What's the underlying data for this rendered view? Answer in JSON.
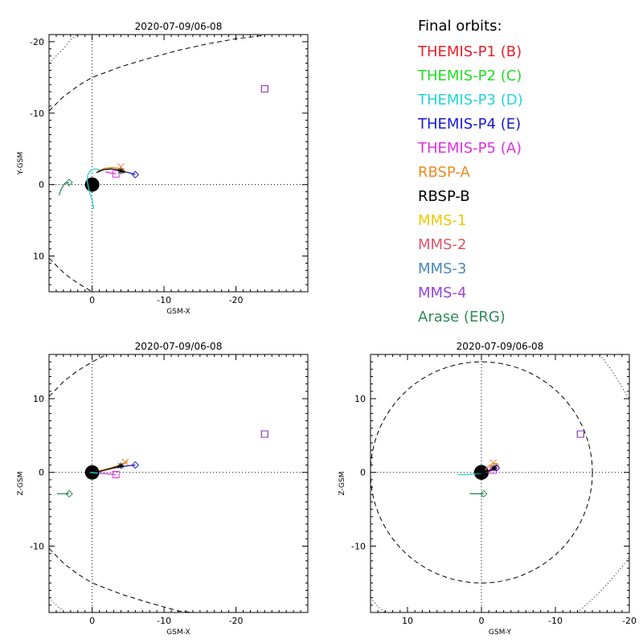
{
  "legend": {
    "title": "Final orbits:",
    "entries": [
      {
        "label": "THEMIS-P1 (B)",
        "color": "#e8202a"
      },
      {
        "label": "THEMIS-P2 (C)",
        "color": "#22dd22"
      },
      {
        "label": "THEMIS-P3 (D)",
        "color": "#22d4d8"
      },
      {
        "label": "THEMIS-P4 (E)",
        "color": "#1a1ad0"
      },
      {
        "label": "THEMIS-P5 (A)",
        "color": "#e030e0"
      },
      {
        "label": "RBSP-A",
        "color": "#ee8a22"
      },
      {
        "label": "RBSP-B",
        "color": "#000000"
      },
      {
        "label": "MMS-1",
        "color": "#f0c800"
      },
      {
        "label": "MMS-2",
        "color": "#dd5566"
      },
      {
        "label": "MMS-3",
        "color": "#4a88b8"
      },
      {
        "label": "MMS-4",
        "color": "#9944d8"
      },
      {
        "label": "Arase (ERG)",
        "color": "#2e8a5a"
      }
    ]
  },
  "chart_data": [
    {
      "type": "line",
      "title": "2020-07-09/06-08",
      "xlabel": "GSM-X",
      "ylabel": "Y-GSM",
      "xlim": [
        6,
        -30
      ],
      "ylim": [
        15,
        -21
      ],
      "xticks": [
        0,
        -10,
        -20
      ],
      "yticks": [
        -20,
        -10,
        0,
        10
      ],
      "earth": {
        "x": 0,
        "y": 0
      },
      "guide_lines": {
        "vertical": 0,
        "horizontal": 0
      },
      "boundaries": [
        {
          "style": "dotted",
          "points": [
            [
              6,
              -17
            ],
            [
              5,
              -18
            ],
            [
              4,
              -19
            ],
            [
              3,
              -20.3
            ],
            [
              2,
              -21
            ]
          ]
        },
        {
          "style": "dashed",
          "points": [
            [
              6,
              -10.3
            ],
            [
              4,
              -12.3
            ],
            [
              2,
              -13.8
            ],
            [
              0,
              -15
            ],
            [
              -4,
              -16.5
            ],
            [
              -8,
              -17.7
            ],
            [
              -12,
              -18.8
            ],
            [
              -16,
              -19.7
            ],
            [
              -20,
              -20.4
            ],
            [
              -24,
              -20.9
            ]
          ]
        },
        {
          "style": "dashed",
          "points": [
            [
              6,
              10.3
            ],
            [
              5,
              11.3
            ],
            [
              4,
              12.3
            ],
            [
              3,
              13.1
            ],
            [
              2,
              13.8
            ],
            [
              1,
              14.4
            ],
            [
              0,
              15
            ]
          ]
        }
      ],
      "series": [
        {
          "name": "THEMIS-P4 (E)",
          "color": "#1a1ad0",
          "points": [
            [
              -3.8,
              -2.0
            ],
            [
              -4.6,
              -1.8
            ],
            [
              -5.3,
              -1.6
            ],
            [
              -6.0,
              -1.4
            ]
          ],
          "marker": {
            "x": -6.0,
            "y": -1.4,
            "shape": "diamond"
          }
        },
        {
          "name": "THEMIS-P3 (D)",
          "color": "#22d4d8",
          "points": [
            [
              -1.2,
              -2.0
            ],
            [
              -0.5,
              -2.2
            ],
            [
              0.2,
              -2.0
            ],
            [
              0.6,
              -1.4
            ],
            [
              0.7,
              -0.6
            ],
            [
              0.5,
              0.5
            ],
            [
              0.2,
              1.6
            ],
            [
              0.0,
              2.2
            ],
            [
              -0.1,
              2.8
            ],
            [
              -0.2,
              3.4
            ]
          ],
          "marker": null
        },
        {
          "name": "THEMIS-P5 (A)",
          "color": "#e030e0",
          "points": [
            [
              -1.8,
              -1.8
            ],
            [
              -2.6,
              -1.6
            ],
            [
              -3.3,
              -1.5
            ]
          ],
          "marker": {
            "x": -3.3,
            "y": -1.5,
            "shape": "square"
          }
        },
        {
          "name": "RBSP-A",
          "color": "#ee8a22",
          "points": [
            [
              -0.8,
              -1.9
            ],
            [
              -1.8,
              -2.3
            ],
            [
              -2.8,
              -2.4
            ],
            [
              -3.6,
              -2.3
            ],
            [
              -4.2,
              -2.1
            ],
            [
              -4.8,
              -1.8
            ]
          ],
          "marker": {
            "x": -4.0,
            "y": -2.5,
            "shape": "cross"
          }
        },
        {
          "name": "RBSP-B",
          "color": "#000000",
          "points": [
            [
              -0.6,
              -1.7
            ],
            [
              -1.6,
              -2.1
            ],
            [
              -2.6,
              -2.2
            ],
            [
              -3.4,
              -2.1
            ],
            [
              -4.0,
              -1.9
            ],
            [
              -4.6,
              -1.7
            ]
          ],
          "marker": {
            "x": -4.0,
            "y": -1.9,
            "shape": "asterisk"
          }
        },
        {
          "name": "MMS-1",
          "color": "#f0c800",
          "points": [],
          "marker": {
            "x": -24.0,
            "y": -13.4,
            "shape": "square"
          }
        },
        {
          "name": "MMS-2",
          "color": "#dd5566",
          "points": [],
          "marker": {
            "x": -24.0,
            "y": -13.4,
            "shape": "square"
          }
        },
        {
          "name": "MMS-3",
          "color": "#4a88b8",
          "points": [],
          "marker": {
            "x": -24.0,
            "y": -13.4,
            "shape": "square"
          }
        },
        {
          "name": "MMS-4",
          "color": "#9944d8",
          "points": [],
          "marker": {
            "x": -24.0,
            "y": -13.4,
            "shape": "square"
          }
        },
        {
          "name": "Arase (ERG)",
          "color": "#2e8a5a",
          "points": [
            [
              4.6,
              1.5
            ],
            [
              4.3,
              0.6
            ],
            [
              3.8,
              -0.2
            ],
            [
              3.2,
              -0.3
            ]
          ],
          "marker": {
            "x": 3.2,
            "y": -0.3,
            "shape": "diamond"
          }
        }
      ]
    },
    {
      "type": "line",
      "title": "2020-07-09/06-08",
      "xlabel": "GSM-X",
      "ylabel": "Z-GSM",
      "xlim": [
        6,
        -30
      ],
      "ylim": [
        -19,
        16
      ],
      "xticks": [
        0,
        -10,
        -20
      ],
      "yticks": [
        -10,
        0,
        10
      ],
      "earth": {
        "x": 0,
        "y": 0
      },
      "guide_lines": {
        "vertical": 0,
        "horizontal": 0
      },
      "boundaries": [
        {
          "style": "dashed",
          "points": [
            [
              6,
              10.3
            ],
            [
              4,
              12.3
            ],
            [
              2,
              13.8
            ],
            [
              0,
              15
            ],
            [
              -2,
              16
            ]
          ]
        },
        {
          "style": "dashed",
          "points": [
            [
              6,
              -10.3
            ],
            [
              4,
              -12.3
            ],
            [
              2,
              -13.8
            ],
            [
              0,
              -15
            ],
            [
              -4,
              -16.5
            ],
            [
              -8,
              -17.7
            ],
            [
              -12,
              -18.8
            ],
            [
              -14,
              -19
            ]
          ]
        },
        {
          "style": "dotted",
          "points": [
            [
              6,
              -17
            ],
            [
              5,
              -18
            ],
            [
              4,
              -18.8
            ]
          ]
        }
      ],
      "series": [
        {
          "name": "THEMIS-P4 (E)",
          "color": "#1a1ad0",
          "points": [
            [
              -1.0,
              0.2
            ],
            [
              -3.0,
              0.6
            ],
            [
              -5.0,
              0.9
            ],
            [
              -6.0,
              1.0
            ]
          ],
          "marker": {
            "x": -6.0,
            "y": 1.0,
            "shape": "diamond"
          }
        },
        {
          "name": "THEMIS-P3 (D)",
          "color": "#22d4d8",
          "points": [
            [
              0.3,
              0.0
            ],
            [
              -0.8,
              -0.1
            ]
          ],
          "marker": null
        },
        {
          "name": "THEMIS-P5 (A)",
          "color": "#e030e0",
          "points": [
            [
              -1.0,
              -0.1
            ],
            [
              -2.2,
              -0.2
            ],
            [
              -3.3,
              -0.3
            ]
          ],
          "marker": {
            "x": -3.3,
            "y": -0.3,
            "shape": "square"
          }
        },
        {
          "name": "RBSP-A",
          "color": "#ee8a22",
          "points": [
            [
              -1.0,
              0.2
            ],
            [
              -2.5,
              0.6
            ],
            [
              -4.5,
              1.2
            ],
            [
              -5.0,
              1.5
            ]
          ],
          "marker": {
            "x": -4.6,
            "y": 1.4,
            "shape": "cross"
          }
        },
        {
          "name": "RBSP-B",
          "color": "#000000",
          "points": [
            [
              -1.0,
              0.1
            ],
            [
              -2.5,
              0.5
            ],
            [
              -4.0,
              0.9
            ]
          ],
          "marker": {
            "x": -4.0,
            "y": 0.9,
            "shape": "asterisk"
          }
        },
        {
          "name": "MMS-1",
          "color": "#f0c800",
          "points": [],
          "marker": {
            "x": -24.0,
            "y": 5.2,
            "shape": "square"
          }
        },
        {
          "name": "MMS-2",
          "color": "#dd5566",
          "points": [],
          "marker": {
            "x": -24.0,
            "y": 5.2,
            "shape": "square"
          }
        },
        {
          "name": "MMS-3",
          "color": "#4a88b8",
          "points": [],
          "marker": {
            "x": -24.0,
            "y": 5.2,
            "shape": "square"
          }
        },
        {
          "name": "MMS-4",
          "color": "#9944d8",
          "points": [],
          "marker": {
            "x": -24.0,
            "y": 5.2,
            "shape": "square"
          }
        },
        {
          "name": "Arase (ERG)",
          "color": "#2e8a5a",
          "points": [
            [
              4.9,
              -2.9
            ],
            [
              3.2,
              -2.9
            ]
          ],
          "marker": {
            "x": 3.2,
            "y": -2.9,
            "shape": "diamond"
          }
        }
      ]
    },
    {
      "type": "line",
      "title": "2020-07-09/06-08",
      "xlabel": "GSM-Y",
      "ylabel": "Z-GSM",
      "xlim": [
        15,
        -20
      ],
      "ylim": [
        -19,
        16
      ],
      "xticks": [
        10,
        0,
        -10,
        -20
      ],
      "yticks": [
        -10,
        0,
        10
      ],
      "earth": {
        "x": 0,
        "y": 0
      },
      "guide_lines": {
        "vertical": 0,
        "horizontal": 0
      },
      "circles": [
        {
          "cx": 0,
          "cy": 0,
          "r": 15,
          "style": "dashed"
        }
      ],
      "boundaries": [
        {
          "style": "dotted",
          "points": [
            [
              -16,
              16
            ],
            [
              -17.5,
              14
            ],
            [
              -19,
              11.6
            ],
            [
              -20,
              10
            ]
          ]
        },
        {
          "style": "dotted",
          "points": [
            [
              15,
              -17
            ],
            [
              14,
              -18.2
            ],
            [
              13,
              -19
            ]
          ]
        },
        {
          "style": "dotted",
          "points": [
            [
              -13,
              -19
            ],
            [
              -15,
              -17.2
            ],
            [
              -17,
              -15.2
            ],
            [
              -19,
              -12.8
            ],
            [
              -20,
              -11.5
            ]
          ]
        }
      ],
      "series": [
        {
          "name": "THEMIS-P4 (E)",
          "color": "#1a1ad0",
          "points": [
            [
              0.5,
              -0.1
            ],
            [
              -0.8,
              0.1
            ],
            [
              -1.6,
              0.4
            ],
            [
              -2.0,
              0.6
            ]
          ],
          "marker": {
            "x": -2.0,
            "y": 0.6,
            "shape": "diamond"
          }
        },
        {
          "name": "THEMIS-P3 (D)",
          "color": "#22d4d8",
          "points": [
            [
              3.2,
              -0.3
            ],
            [
              2.0,
              -0.3
            ],
            [
              0.8,
              -0.2
            ],
            [
              0.0,
              -0.1
            ]
          ],
          "marker": null
        },
        {
          "name": "THEMIS-P5 (A)",
          "color": "#e030e0",
          "points": [
            [
              -0.6,
              0.0
            ],
            [
              -1.2,
              0.2
            ],
            [
              -1.6,
              0.3
            ]
          ],
          "marker": {
            "x": -1.6,
            "y": 0.3,
            "shape": "square"
          }
        },
        {
          "name": "RBSP-A",
          "color": "#ee8a22",
          "points": [
            [
              -0.5,
              0.3
            ],
            [
              -1.0,
              0.9
            ],
            [
              -1.6,
              1.2
            ],
            [
              -2.1,
              1.2
            ],
            [
              -2.4,
              0.8
            ]
          ],
          "marker": {
            "x": -1.6,
            "y": 1.3,
            "shape": "cross"
          }
        },
        {
          "name": "RBSP-B",
          "color": "#000000",
          "points": [
            [
              0.8,
              -0.1
            ],
            [
              -0.4,
              0.0
            ],
            [
              -1.2,
              0.3
            ],
            [
              -1.7,
              0.6
            ]
          ],
          "marker": {
            "x": -1.7,
            "y": 0.6,
            "shape": "asterisk"
          }
        },
        {
          "name": "MMS-1",
          "color": "#f0c800",
          "points": [],
          "marker": {
            "x": -13.4,
            "y": 5.2,
            "shape": "square"
          }
        },
        {
          "name": "MMS-2",
          "color": "#dd5566",
          "points": [],
          "marker": {
            "x": -13.4,
            "y": 5.2,
            "shape": "square"
          }
        },
        {
          "name": "MMS-3",
          "color": "#4a88b8",
          "points": [],
          "marker": {
            "x": -13.4,
            "y": 5.2,
            "shape": "square"
          }
        },
        {
          "name": "MMS-4",
          "color": "#9944d8",
          "points": [],
          "marker": {
            "x": -13.4,
            "y": 5.2,
            "shape": "square"
          }
        },
        {
          "name": "Arase (ERG)",
          "color": "#2e8a5a",
          "points": [
            [
              1.6,
              -2.9
            ],
            [
              -0.3,
              -2.9
            ]
          ],
          "marker": {
            "x": -0.3,
            "y": -2.9,
            "shape": "diamond"
          }
        }
      ]
    }
  ]
}
